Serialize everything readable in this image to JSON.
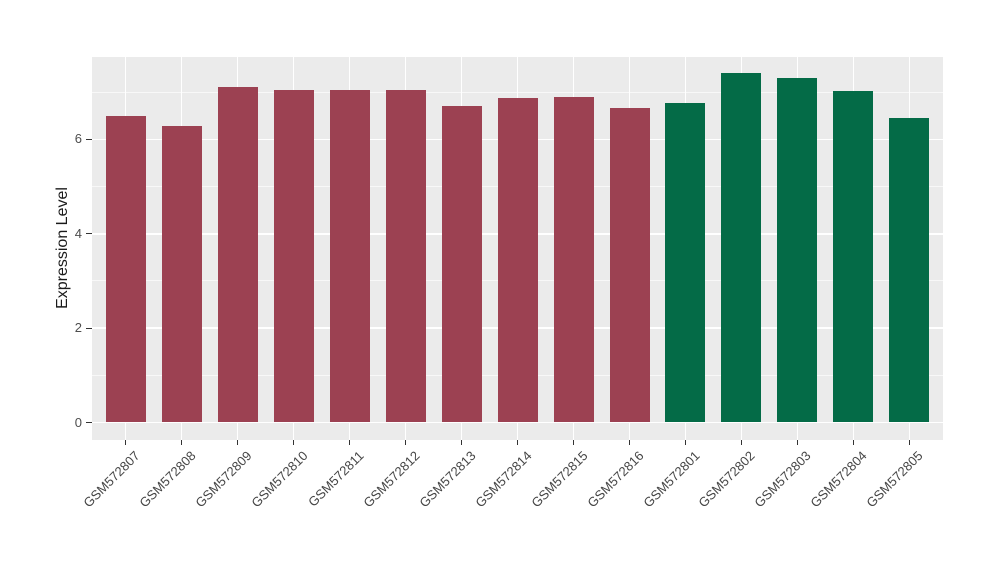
{
  "chart_data": {
    "type": "bar",
    "title": "",
    "xlabel": "",
    "ylabel": "Expression Level",
    "categories": [
      "GSM572807",
      "GSM572808",
      "GSM572809",
      "GSM572810",
      "GSM572811",
      "GSM572812",
      "GSM572813",
      "GSM572814",
      "GSM572815",
      "GSM572816",
      "GSM572801",
      "GSM572802",
      "GSM572803",
      "GSM572804",
      "GSM572805"
    ],
    "values": [
      6.5,
      6.28,
      7.11,
      7.05,
      7.05,
      7.04,
      6.7,
      6.88,
      6.9,
      6.67,
      6.77,
      7.41,
      7.3,
      7.03,
      6.45
    ],
    "groups": [
      "red",
      "red",
      "red",
      "red",
      "red",
      "red",
      "red",
      "red",
      "red",
      "red",
      "green",
      "green",
      "green",
      "green",
      "green"
    ],
    "group_colors": {
      "red": "#9C4152",
      "green": "#046B47"
    },
    "ylim": [
      0,
      7.75
    ],
    "yticks": [
      0,
      2,
      4,
      6
    ],
    "yticks_minor": [
      1,
      3,
      5,
      7
    ],
    "grid": true,
    "legend": "none",
    "x_label_rotation_deg": 45,
    "panel_background": "#EBEBEB",
    "grid_color": "#FFFFFF",
    "axis_text_color": "#4D4D4D"
  }
}
